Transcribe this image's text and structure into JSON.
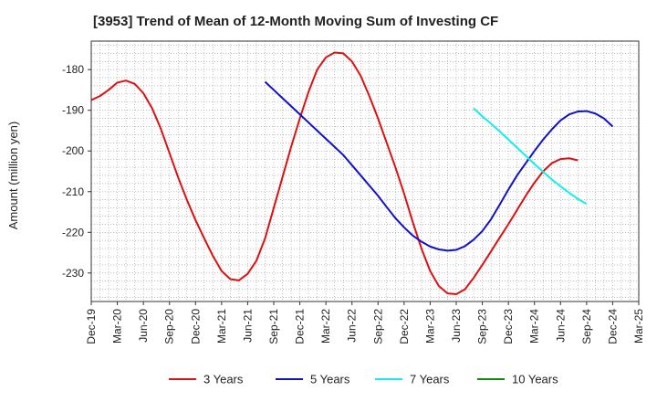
{
  "chart_data": {
    "type": "line",
    "title": "[3953]  Trend of Mean of 12-Month Moving Sum of Investing CF",
    "xlabel": "",
    "ylabel": "Amount (million yen)",
    "ylim": [
      -237,
      -173
    ],
    "yticks": [
      -180,
      -190,
      -200,
      -210,
      -220,
      -230
    ],
    "xtick_labels": [
      "Dec-19",
      "Mar-20",
      "Jun-20",
      "Sep-20",
      "Dec-20",
      "Mar-21",
      "Jun-21",
      "Sep-21",
      "Dec-21",
      "Mar-22",
      "Jun-22",
      "Sep-22",
      "Dec-22",
      "Mar-23",
      "Jun-23",
      "Sep-23",
      "Dec-23",
      "Mar-24",
      "Jun-24",
      "Sep-24",
      "Dec-24",
      "Mar-25"
    ],
    "grid": true,
    "legend_position": "bottom",
    "series": [
      {
        "name": "3 Years",
        "color": "#dd1111",
        "start_index": 0,
        "values": [
          -187.5,
          -186.5,
          -185,
          -183.2,
          -182.7,
          -183.5,
          -185.8,
          -189.5,
          -194.5,
          -200.5,
          -206.5,
          -212,
          -217,
          -221.5,
          -225.8,
          -229.5,
          -231.5,
          -231.8,
          -230.2,
          -227,
          -221.5,
          -214,
          -206.5,
          -199,
          -192,
          -185.5,
          -180,
          -177,
          -175.8,
          -176,
          -178,
          -181.5,
          -186.5,
          -192,
          -198,
          -204,
          -210.5,
          -217.5,
          -224,
          -229.5,
          -233.2,
          -235,
          -235.2,
          -234,
          -231.2,
          -228,
          -224.7,
          -221.3,
          -218,
          -214.5,
          -211,
          -207.8,
          -205,
          -203,
          -202,
          -201.8,
          -202.3
        ]
      },
      {
        "name": "5 Years",
        "color": "#1111cc",
        "start_index": 20,
        "values": [
          -183,
          -185,
          -187,
          -189,
          -191,
          -193,
          -195,
          -197,
          -199,
          -201,
          -203.5,
          -206,
          -208.5,
          -211,
          -213.8,
          -216.5,
          -218.8,
          -220.8,
          -222.3,
          -223.5,
          -224.2,
          -224.5,
          -224.3,
          -223.4,
          -221.8,
          -219.7,
          -216.8,
          -213.2,
          -209.5,
          -206,
          -203,
          -200,
          -197.2,
          -194.7,
          -192.5,
          -191,
          -190.3,
          -190.2,
          -190.8,
          -192,
          -194
        ]
      },
      {
        "name": "7 Years",
        "color": "#11eeee",
        "start_index": 44,
        "values": [
          -189.5,
          -191.5,
          -193.3,
          -195.2,
          -197.2,
          -199.2,
          -201.2,
          -203.2,
          -205.1,
          -207,
          -208.7,
          -210.3,
          -211.8,
          -213
        ]
      },
      {
        "name": "10 Years",
        "color": "#118811",
        "start_index": 0,
        "values": []
      }
    ]
  }
}
